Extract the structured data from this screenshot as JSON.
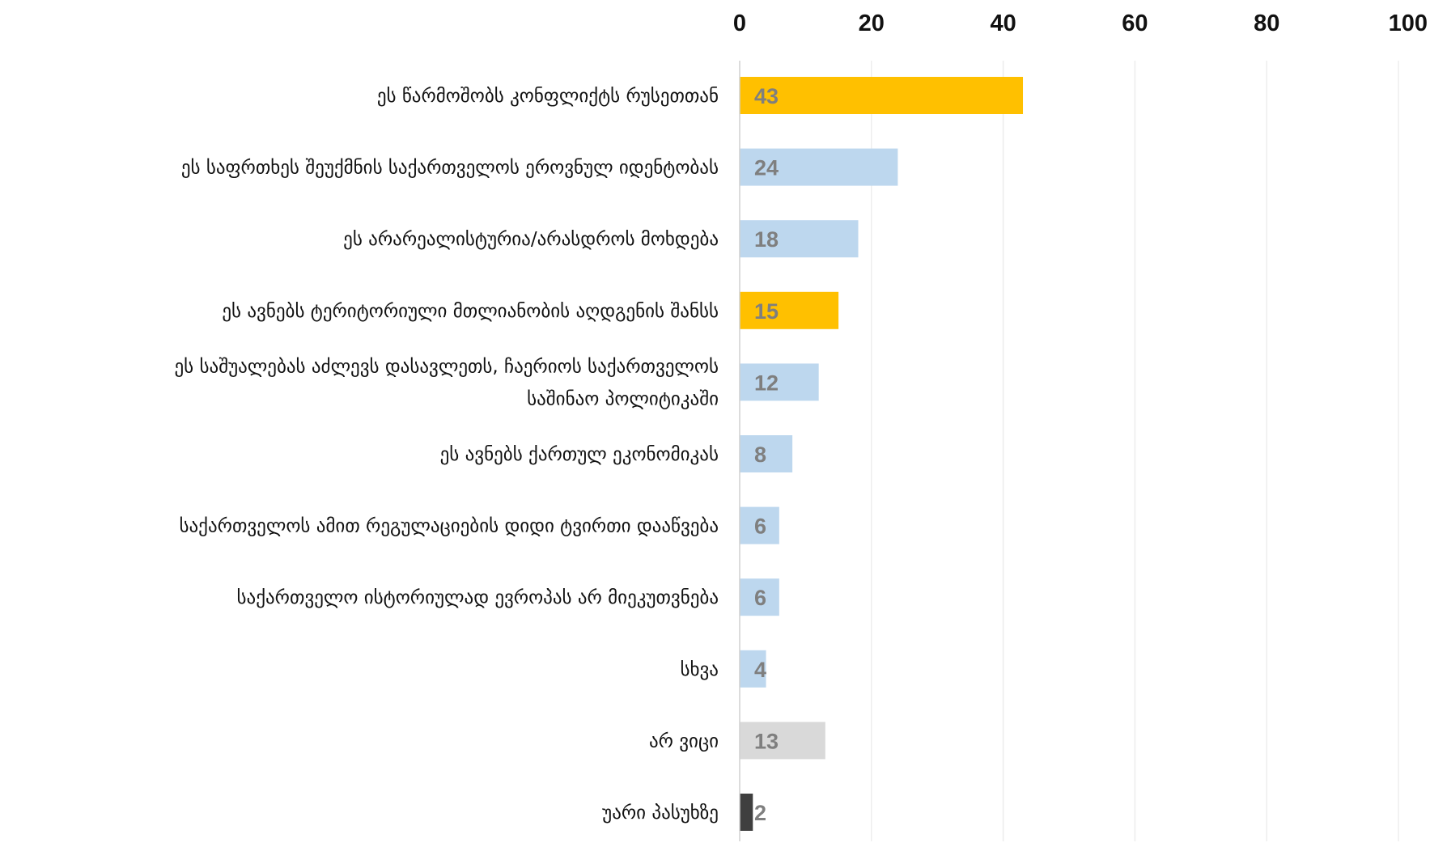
{
  "chart_data": {
    "type": "bar",
    "orientation": "horizontal",
    "categories": [
      [
        "ეს წარმოშობს კონფლიქტს რუსეთთან"
      ],
      [
        "ეს საფრთხეს შეუქმნის საქართველოს ეროვნულ იდენტობას"
      ],
      [
        "ეს არარეალისტურია/არასდროს მოხდება"
      ],
      [
        "ეს ავნებს ტერიტორიული მთლიანობის აღდგენის შანსს"
      ],
      [
        "ეს საშუალებას აძლევს დასავლეთს, ჩაერიოს საქართველოს",
        "საშინაო პოლიტიკაში"
      ],
      [
        "ეს ავნებს ქართულ ეკონომიკას"
      ],
      [
        "საქართველოს ამით რეგულაციების დიდი ტვირთი დააწვება"
      ],
      [
        "საქართველო ისტორიულად ევროპას არ მიეკუთვნება"
      ],
      [
        "სხვა"
      ],
      [
        "არ ვიცი"
      ],
      [
        "უარი პასუხზე"
      ]
    ],
    "values": [
      43,
      24,
      18,
      15,
      12,
      8,
      6,
      6,
      4,
      13,
      2
    ],
    "value_labels": [
      "43",
      "24",
      "18",
      "15",
      "12",
      "8",
      "6",
      "6",
      "4",
      "13",
      "2"
    ],
    "bar_colors": [
      "#FFC000",
      "#BDD7EE",
      "#BDD7EE",
      "#FFC000",
      "#BDD7EE",
      "#BDD7EE",
      "#BDD7EE",
      "#BDD7EE",
      "#BDD7EE",
      "#D9D9D9",
      "#3F3F3F"
    ],
    "label_color": "#7F7F7F",
    "xlim": [
      0,
      100
    ],
    "xticks": [
      0,
      20,
      40,
      60,
      80,
      100
    ],
    "xtick_labels": [
      "0",
      "20",
      "40",
      "60",
      "80",
      "100"
    ],
    "axis_position": "top",
    "grid": true,
    "legend": false
  }
}
